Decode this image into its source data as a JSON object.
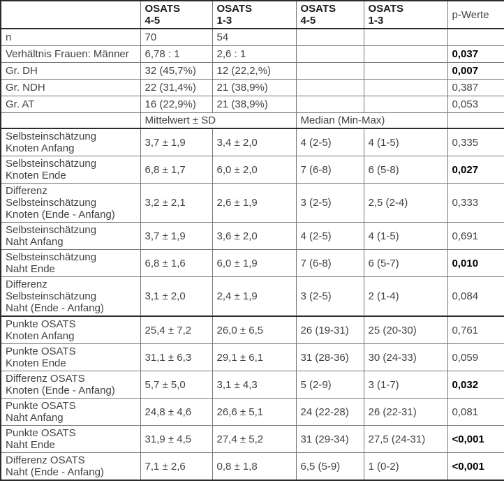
{
  "table": {
    "header": {
      "corner": "",
      "group_cols": [
        "OSATS\n4-5",
        "OSATS\n1-3",
        "OSATS\n4-5",
        "OSATS\n1-3"
      ],
      "p_label": "p-Werte"
    },
    "subheader": {
      "left_blank": "",
      "mittelwert_label": "Mittelwert ± SD",
      "median_label": "Median (Min-Max)",
      "p_blank": ""
    },
    "rows": [
      {
        "group": "demo",
        "label": "n",
        "c1": "70",
        "c2": "54",
        "c3": "",
        "c4": "",
        "p": "",
        "p_bold": false
      },
      {
        "group": "demo",
        "label": "Verhältnis Frauen: Männer",
        "c1": "6,78 : 1",
        "c2": "2,6 : 1",
        "c3": "",
        "c4": "",
        "p": "0,037",
        "p_bold": true
      },
      {
        "group": "demo",
        "label": "Gr. DH",
        "c1": "32 (45,7%)",
        "c2": "12 (22,2,%)",
        "c3": "",
        "c4": "",
        "p": "0,007",
        "p_bold": true
      },
      {
        "group": "demo",
        "label": "Gr. NDH",
        "c1": "22 (31,4%)",
        "c2": "21 (38,9%)",
        "c3": "",
        "c4": "",
        "p": "0,387",
        "p_bold": false
      },
      {
        "group": "demo",
        "label": "Gr. AT",
        "c1": "16 (22,9%)",
        "c2": "21 (38,9%)",
        "c3": "",
        "c4": "",
        "p": "0,053",
        "p_bold": false
      },
      {
        "group": "self",
        "label": "Selbsteinschätzung\nKnoten Anfang",
        "c1": "3,7 ± 1,9",
        "c2": "3,4 ± 2,0",
        "c3": "4 (2-5)",
        "c4": "4 (1-5)",
        "p": "0,335",
        "p_bold": false
      },
      {
        "group": "self",
        "label": "Selbsteinschätzung\nKnoten Ende",
        "c1": "6,8 ± 1,7",
        "c2": "6,0 ± 2,0",
        "c3": "7 (6-8)",
        "c4": "6 (5-8)",
        "p": "0,027",
        "p_bold": true
      },
      {
        "group": "self",
        "label": "Differenz\nSelbsteinschätzung\nKnoten (Ende - Anfang)",
        "c1": "3,2 ± 2,1",
        "c2": "2,6 ± 1,9",
        "c3": "3 (2-5)",
        "c4": "2,5 (2-4)",
        "p": "0,333",
        "p_bold": false
      },
      {
        "group": "self",
        "label": "Selbsteinschätzung\nNaht Anfang",
        "c1": "3,7 ± 1,9",
        "c2": "3,6 ± 2,0",
        "c3": "4 (2-5)",
        "c4": "4 (1-5)",
        "p": "0,691",
        "p_bold": false
      },
      {
        "group": "self",
        "label": "Selbsteinschätzung\nNaht Ende",
        "c1": "6,8 ± 1,6",
        "c2": "6,0 ± 1,9",
        "c3": "7 (6-8)",
        "c4": "6 (5-7)",
        "p": "0,010",
        "p_bold": true
      },
      {
        "group": "self",
        "label": "Differenz\nSelbsteinschätzung\nNaht (Ende - Anfang)",
        "c1": "3,1 ± 2,0",
        "c2": "2,4 ± 1,9",
        "c3": "3 (2-5)",
        "c4": "2 (1-4)",
        "p": "0,084",
        "p_bold": false
      },
      {
        "group": "osats",
        "label": "Punkte OSATS\nKnoten Anfang",
        "c1": "25,4 ± 7,2",
        "c2": "26,0 ± 6,5",
        "c3": "26 (19-31)",
        "c4": "25 (20-30)",
        "p": "0,761",
        "p_bold": false
      },
      {
        "group": "osats",
        "label": "Punkte OSATS\nKnoten Ende",
        "c1": "31,1 ± 6,3",
        "c2": "29,1 ± 6,1",
        "c3": "31 (28-36)",
        "c4": "30 (24-33)",
        "p": "0,059",
        "p_bold": false
      },
      {
        "group": "osats",
        "label": "Differenz OSATS\nKnoten (Ende - Anfang)",
        "c1": "5,7 ± 5,0",
        "c2": "3,1 ± 4,3",
        "c3": "5 (2-9)",
        "c4": "3 (1-7)",
        "p": "0,032",
        "p_bold": true
      },
      {
        "group": "osats",
        "label": "Punkte OSATS\nNaht Anfang",
        "c1": "24,8 ± 4,6",
        "c2": "26,6 ± 5,1",
        "c3": "24 (22-28)",
        "c4": "26 (22-31)",
        "p": "0,081",
        "p_bold": false
      },
      {
        "group": "osats",
        "label": "Punkte OSATS\nNaht Ende",
        "c1": "31,9 ± 4,5",
        "c2": "27,4 ± 5,2",
        "c3": "31 (29-34)",
        "c4": "27,5 (24-31)",
        "p": "<0,001",
        "p_bold": true
      },
      {
        "group": "osats",
        "label": "Differenz OSATS\nNaht (Ende - Anfang)",
        "c1": "7,1 ± 2,6",
        "c2": "0,8 ± 1,8",
        "c3": "6,5 (5-9)",
        "c4": "1 (0-2)",
        "p": "<0,001",
        "p_bold": true
      }
    ]
  }
}
